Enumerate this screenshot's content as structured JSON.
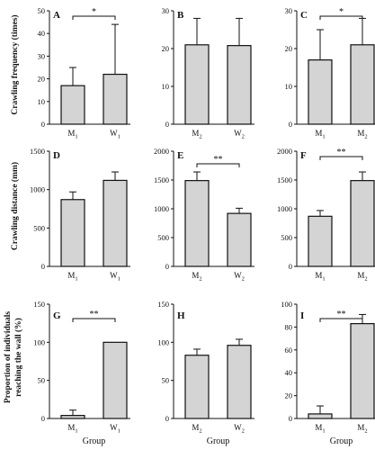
{
  "ylabels": {
    "row1": "Crawling frequency (times)",
    "row2": "Crawling distance (mm)",
    "row3": [
      "Proportion of individuals",
      "reaching the wall (%)"
    ]
  },
  "group_label": "Group",
  "chart_data": [
    {
      "panel": "A",
      "type": "bar",
      "categories": [
        {
          "base": "M",
          "sub": "1"
        },
        {
          "base": "W",
          "sub": "1"
        }
      ],
      "values": [
        17,
        22
      ],
      "errors": [
        8,
        22
      ],
      "ylim": [
        0,
        50
      ],
      "yticks": [
        0,
        10,
        20,
        30,
        40,
        50
      ],
      "significance": "*",
      "group_label": false
    },
    {
      "panel": "B",
      "type": "bar",
      "categories": [
        {
          "base": "M",
          "sub": "2"
        },
        {
          "base": "W",
          "sub": "2"
        }
      ],
      "values": [
        21,
        20.8
      ],
      "errors": [
        7,
        7.2
      ],
      "ylim": [
        0,
        30
      ],
      "yticks": [
        0,
        10,
        20,
        30
      ],
      "significance": "",
      "group_label": false
    },
    {
      "panel": "C",
      "type": "bar",
      "categories": [
        {
          "base": "M",
          "sub": "1"
        },
        {
          "base": "M",
          "sub": "2"
        }
      ],
      "values": [
        17,
        21
      ],
      "errors": [
        8,
        7
      ],
      "ylim": [
        0,
        30
      ],
      "yticks": [
        0,
        10,
        20,
        30
      ],
      "significance": "*",
      "group_label": false
    },
    {
      "panel": "D",
      "type": "bar",
      "categories": [
        {
          "base": "M",
          "sub": "1"
        },
        {
          "base": "W",
          "sub": "1"
        }
      ],
      "values": [
        870,
        1120
      ],
      "errors": [
        100,
        110
      ],
      "ylim": [
        0,
        1500
      ],
      "yticks": [
        0,
        500,
        1000,
        1500
      ],
      "significance": "",
      "group_label": false
    },
    {
      "panel": "E",
      "type": "bar",
      "categories": [
        {
          "base": "M",
          "sub": "2"
        },
        {
          "base": "W",
          "sub": "2"
        }
      ],
      "values": [
        1490,
        920
      ],
      "errors": [
        150,
        90
      ],
      "ylim": [
        0,
        2000
      ],
      "yticks": [
        0,
        500,
        1000,
        1500,
        2000
      ],
      "significance": "**",
      "group_label": false
    },
    {
      "panel": "F",
      "type": "bar",
      "categories": [
        {
          "base": "M",
          "sub": "1"
        },
        {
          "base": "M",
          "sub": "2"
        }
      ],
      "values": [
        870,
        1490
      ],
      "errors": [
        100,
        150
      ],
      "ylim": [
        0,
        2000
      ],
      "yticks": [
        0,
        500,
        1000,
        1500,
        2000
      ],
      "significance": "**",
      "group_label": false
    },
    {
      "panel": "G",
      "type": "bar",
      "categories": [
        {
          "base": "M",
          "sub": "1"
        },
        {
          "base": "W",
          "sub": "1"
        }
      ],
      "values": [
        4,
        100
      ],
      "errors": [
        7,
        0
      ],
      "ylim": [
        0,
        150
      ],
      "yticks": [
        0,
        50,
        100,
        150
      ],
      "significance": "**",
      "group_label": true
    },
    {
      "panel": "H",
      "type": "bar",
      "categories": [
        {
          "base": "M",
          "sub": "2"
        },
        {
          "base": "W",
          "sub": "2"
        }
      ],
      "values": [
        83,
        96
      ],
      "errors": [
        8,
        8
      ],
      "ylim": [
        0,
        150
      ],
      "yticks": [
        0,
        50,
        100,
        150
      ],
      "significance": "",
      "group_label": true
    },
    {
      "panel": "I",
      "type": "bar",
      "categories": [
        {
          "base": "M",
          "sub": "1"
        },
        {
          "base": "M",
          "sub": "2"
        }
      ],
      "values": [
        4,
        83
      ],
      "errors": [
        7,
        8
      ],
      "ylim": [
        0,
        100
      ],
      "yticks": [
        0,
        20,
        40,
        60,
        80,
        100
      ],
      "significance": "**",
      "group_label": true
    }
  ]
}
